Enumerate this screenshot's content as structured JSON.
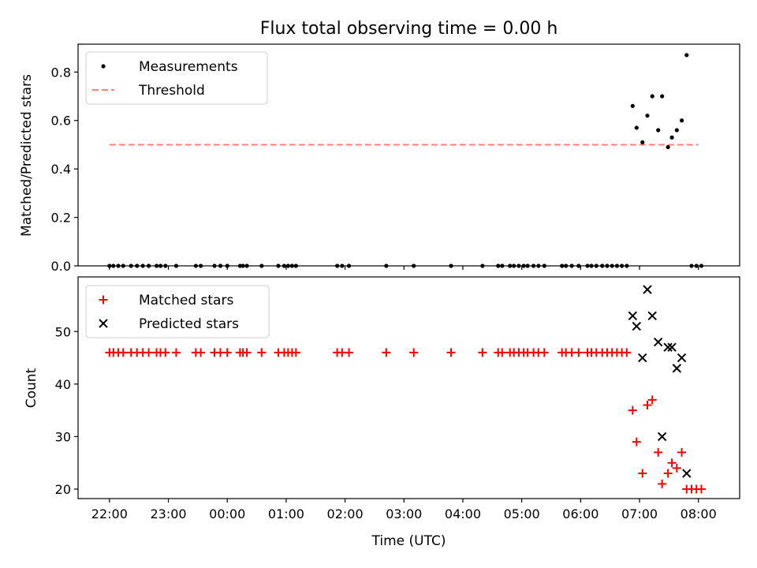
{
  "chart_data": [
    {
      "type": "scatter",
      "title": "Flux total observing time = 0.00 h",
      "xlabel": "",
      "ylabel": "Matched/Predicted stars",
      "ylim": [
        0,
        0.915
      ],
      "yticks": [
        0.0,
        0.2,
        0.4,
        0.6,
        0.8
      ],
      "ytick_labels": [
        "0.0",
        "0.2",
        "0.4",
        "0.6",
        "0.8"
      ],
      "legend": {
        "placement": "top-left"
      },
      "threshold": {
        "name": "Threshold",
        "value": 0.5,
        "x_start": "22:00",
        "x_end": "08:00",
        "color": "#ff7f7f",
        "style": "dashed"
      },
      "series": [
        {
          "name": "Measurements",
          "color": "#000000",
          "marker": "dot",
          "x": [
            "22:00",
            "22:04",
            "22:09",
            "22:14",
            "22:22",
            "22:28",
            "22:34",
            "22:40",
            "22:48",
            "22:52",
            "22:57",
            "23:08",
            "23:28",
            "23:33",
            "23:47",
            "23:53",
            "24:00",
            "24:13",
            "24:16",
            "24:20",
            "24:35",
            "24:52",
            "24:58",
            "25:02",
            "25:06",
            "25:10",
            "25:52",
            "25:57",
            "26:04",
            "26:42",
            "27:10",
            "27:48",
            "28:20",
            "28:36",
            "28:40",
            "28:48",
            "28:52",
            "28:57",
            "29:02",
            "29:06",
            "29:12",
            "29:17",
            "29:23",
            "29:41",
            "29:45",
            "29:51",
            "29:58",
            "30:07",
            "30:11",
            "30:16",
            "30:22",
            "30:27",
            "30:32",
            "30:37",
            "30:42",
            "30:47",
            "30:53",
            "30:57",
            "31:03",
            "31:08",
            "31:13",
            "31:19",
            "31:23",
            "31:29",
            "31:33",
            "31:38",
            "31:43",
            "31:48",
            "31:53",
            "31:58",
            "32:03"
          ],
          "y": [
            0,
            0,
            0,
            0,
            0,
            0,
            0,
            0,
            0,
            0,
            0,
            0,
            0,
            0,
            0,
            0,
            0,
            0,
            0,
            0,
            0,
            0,
            0,
            0,
            0,
            0,
            0,
            0,
            0,
            0,
            0,
            0,
            0,
            0,
            0,
            0,
            0,
            0,
            0,
            0,
            0,
            0,
            0,
            0,
            0,
            0,
            0,
            0,
            0,
            0,
            0,
            0,
            0,
            0,
            0,
            0,
            0.66,
            0.57,
            0.51,
            0.62,
            0.7,
            0.56,
            0.7,
            0.49,
            0.53,
            0.56,
            0.6,
            0.87,
            0,
            0,
            0
          ]
        }
      ]
    },
    {
      "type": "scatter",
      "title": "",
      "xlabel": "Time (UTC)",
      "ylabel": "Count",
      "ylim": [
        18.2,
        60.4
      ],
      "yticks": [
        20,
        30,
        40,
        50
      ],
      "ytick_labels": [
        "20",
        "30",
        "40",
        "50"
      ],
      "xlim": [
        "21:28",
        "08:42"
      ],
      "xticks": [
        "22:00",
        "23:00",
        "00:00",
        "01:00",
        "02:00",
        "03:00",
        "04:00",
        "05:00",
        "06:00",
        "07:00",
        "08:00"
      ],
      "legend": {
        "placement": "top-left"
      },
      "series": [
        {
          "name": "Matched stars",
          "color": "#ff0000",
          "marker": "plus",
          "x": [
            "22:00",
            "22:04",
            "22:09",
            "22:14",
            "22:22",
            "22:28",
            "22:34",
            "22:40",
            "22:48",
            "22:52",
            "22:57",
            "23:08",
            "23:28",
            "23:33",
            "23:47",
            "23:53",
            "24:00",
            "24:13",
            "24:16",
            "24:20",
            "24:35",
            "24:52",
            "24:58",
            "25:02",
            "25:06",
            "25:10",
            "25:52",
            "25:57",
            "26:04",
            "26:42",
            "27:10",
            "27:48",
            "28:20",
            "28:36",
            "28:40",
            "28:48",
            "28:52",
            "28:57",
            "29:02",
            "29:06",
            "29:12",
            "29:17",
            "29:23",
            "29:41",
            "29:45",
            "29:51",
            "29:58",
            "30:07",
            "30:11",
            "30:16",
            "30:22",
            "30:27",
            "30:32",
            "30:37",
            "30:42",
            "30:47",
            "30:53",
            "30:57",
            "31:03",
            "31:08",
            "31:13",
            "31:19",
            "31:23",
            "31:29",
            "31:33",
            "31:38",
            "31:43",
            "31:48",
            "31:53",
            "31:58",
            "32:03"
          ],
          "y": [
            46,
            46,
            46,
            46,
            46,
            46,
            46,
            46,
            46,
            46,
            46,
            46,
            46,
            46,
            46,
            46,
            46,
            46,
            46,
            46,
            46,
            46,
            46,
            46,
            46,
            46,
            46,
            46,
            46,
            46,
            46,
            46,
            46,
            46,
            46,
            46,
            46,
            46,
            46,
            46,
            46,
            46,
            46,
            46,
            46,
            46,
            46,
            46,
            46,
            46,
            46,
            46,
            46,
            46,
            46,
            46,
            35,
            29,
            23,
            36,
            37,
            27,
            21,
            23,
            25,
            24,
            27,
            20,
            20,
            20,
            20
          ]
        },
        {
          "name": "Predicted stars",
          "color": "#000000",
          "marker": "x",
          "x": [
            "30:53",
            "30:57",
            "31:03",
            "31:08",
            "31:13",
            "31:19",
            "31:23",
            "31:29",
            "31:33",
            "31:38",
            "31:43",
            "31:48"
          ],
          "y": [
            53,
            51,
            45,
            58,
            53,
            48,
            30,
            47,
            47,
            43,
            45,
            23
          ]
        }
      ]
    }
  ]
}
